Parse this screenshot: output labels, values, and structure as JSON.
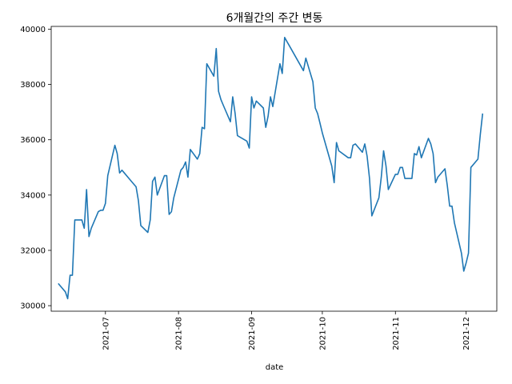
{
  "chart_data": {
    "type": "line",
    "title": "6개월간의 주간 변동",
    "xlabel": "date",
    "ylabel": "",
    "xlim": [
      "2021-06-08",
      "2021-12-14"
    ],
    "ylim": [
      29800,
      40100
    ],
    "y_ticks": [
      30000,
      32000,
      34000,
      36000,
      38000,
      40000
    ],
    "y_tick_labels": [
      "30000",
      "32000",
      "34000",
      "36000",
      "38000",
      "40000"
    ],
    "x_ticks": [
      "2021-07-01",
      "2021-08-01",
      "2021-09-01",
      "2021-10-01",
      "2021-11-01",
      "2021-12-01"
    ],
    "x_tick_labels": [
      "2021-07",
      "2021-08",
      "2021-09",
      "2021-10",
      "2021-11",
      "2021-12"
    ],
    "grid": false,
    "color": "#1f77b4",
    "series": [
      {
        "x": [
          "2021-06-11",
          "2021-06-14",
          "2021-06-15",
          "2021-06-16",
          "2021-06-17",
          "2021-06-18",
          "2021-06-21",
          "2021-06-22",
          "2021-06-23",
          "2021-06-24",
          "2021-06-25",
          "2021-06-28",
          "2021-06-29",
          "2021-06-30",
          "2021-07-01",
          "2021-07-02",
          "2021-07-05",
          "2021-07-06",
          "2021-07-07",
          "2021-07-08",
          "2021-07-09",
          "2021-07-12",
          "2021-07-13",
          "2021-07-14",
          "2021-07-15",
          "2021-07-16",
          "2021-07-19",
          "2021-07-20",
          "2021-07-21",
          "2021-07-22",
          "2021-07-23",
          "2021-07-26",
          "2021-07-27",
          "2021-07-28",
          "2021-07-29",
          "2021-07-30",
          "2021-08-02",
          "2021-08-03",
          "2021-08-04",
          "2021-08-05",
          "2021-08-06",
          "2021-08-09",
          "2021-08-10",
          "2021-08-11",
          "2021-08-12",
          "2021-08-13",
          "2021-08-16",
          "2021-08-17",
          "2021-08-18",
          "2021-08-19",
          "2021-08-20",
          "2021-08-23",
          "2021-08-24",
          "2021-08-25",
          "2021-08-26",
          "2021-08-27",
          "2021-08-30",
          "2021-08-31",
          "2021-09-01",
          "2021-09-02",
          "2021-09-03",
          "2021-09-06",
          "2021-09-07",
          "2021-09-08",
          "2021-09-09",
          "2021-09-10",
          "2021-09-13",
          "2021-09-14",
          "2021-09-15",
          "2021-09-16",
          "2021-09-17",
          "2021-09-23",
          "2021-09-24",
          "2021-09-27",
          "2021-09-28",
          "2021-09-29",
          "2021-09-30",
          "2021-10-01",
          "2021-10-05",
          "2021-10-06",
          "2021-10-07",
          "2021-10-08",
          "2021-10-12",
          "2021-10-13",
          "2021-10-14",
          "2021-10-15",
          "2021-10-18",
          "2021-10-19",
          "2021-10-20",
          "2021-10-21",
          "2021-10-22",
          "2021-10-25",
          "2021-10-26",
          "2021-10-27",
          "2021-10-28",
          "2021-10-29",
          "2021-11-01",
          "2021-11-02",
          "2021-11-03",
          "2021-11-04",
          "2021-11-05",
          "2021-11-08",
          "2021-11-09",
          "2021-11-10",
          "2021-11-11",
          "2021-11-12",
          "2021-11-15",
          "2021-11-16",
          "2021-11-17",
          "2021-11-18",
          "2021-11-19",
          "2021-11-22",
          "2021-11-23",
          "2021-11-24",
          "2021-11-25",
          "2021-11-26",
          "2021-11-29",
          "2021-11-30",
          "2021-12-01",
          "2021-12-02",
          "2021-12-03",
          "2021-12-06",
          "2021-12-07",
          "2021-12-08"
        ],
        "y": [
          30800,
          30500,
          30250,
          31100,
          31100,
          33100,
          33100,
          32800,
          34200,
          32500,
          32800,
          33400,
          33450,
          33450,
          33700,
          34700,
          35800,
          35500,
          34800,
          34900,
          34800,
          34500,
          34400,
          34300,
          33800,
          32900,
          32650,
          33100,
          34500,
          34650,
          34000,
          34700,
          34700,
          33300,
          33400,
          33900,
          34900,
          35000,
          35200,
          34650,
          35650,
          35300,
          35500,
          36450,
          36400,
          38750,
          38300,
          39300,
          37750,
          37450,
          37250,
          36650,
          37550,
          36950,
          36150,
          36100,
          35950,
          35700,
          37550,
          37150,
          37400,
          37150,
          36450,
          36850,
          37550,
          37200,
          38750,
          38400,
          39700,
          39550,
          39400,
          38500,
          38950,
          38100,
          37150,
          36950,
          36600,
          36250,
          35050,
          34450,
          35900,
          35600,
          35350,
          35350,
          35800,
          35850,
          35550,
          35850,
          35400,
          34600,
          33250,
          33900,
          34650,
          35600,
          35050,
          34200,
          34750,
          34750,
          35000,
          35000,
          34600,
          34600,
          35500,
          35450,
          35750,
          35350,
          36050,
          35850,
          35500,
          34450,
          34650,
          34950,
          34350,
          33600,
          33600,
          33000,
          31900,
          31250,
          31550,
          31900,
          35000,
          35300,
          36200,
          36950
        ]
      }
    ]
  }
}
